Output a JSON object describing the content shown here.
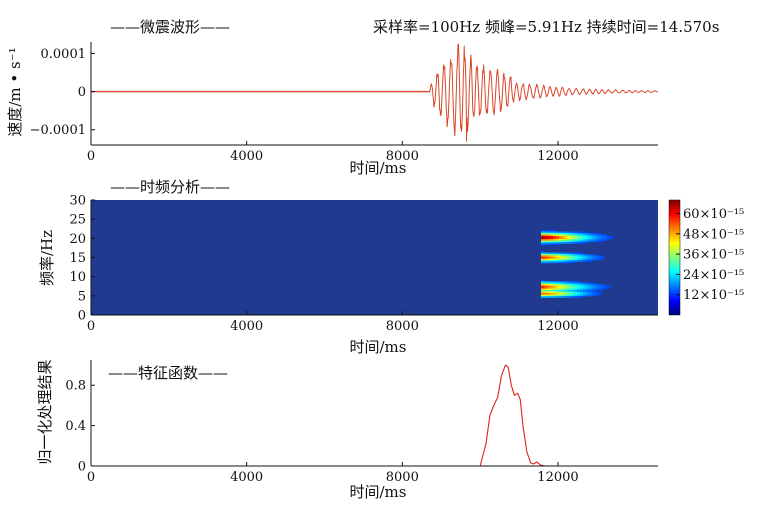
{
  "chart_data": [
    {
      "type": "line",
      "legend": "——微震波形——",
      "info": "采样率=100Hz 频峰=5.91Hz 持续时间=14.570s",
      "xlabel": "时间/ms",
      "ylabel": "速度/m • s⁻¹",
      "xlim": [
        0,
        14570
      ],
      "ylim": [
        -0.00014,
        0.00013
      ],
      "xticks": [
        0,
        4000,
        8000,
        12000
      ],
      "xtick_labels": [
        "0",
        "4000",
        "8000",
        "12000"
      ],
      "yticks": [
        0.0001,
        0,
        -0.0001
      ],
      "ytick_labels": [
        "0.0001",
        "0",
        "−0.0001"
      ],
      "line_color": "#d9472b",
      "waveform_envelope": {
        "quiet_until": 8700,
        "peak_time": 9500,
        "peak_amplitude": 0.00012,
        "min_amplitude": -0.00013,
        "coda_until": 14570,
        "dominant_frequency_hz": 5.91
      }
    },
    {
      "type": "heatmap",
      "legend": "——时频分析——",
      "xlabel": "时间/ms",
      "ylabel": "频率/Hz",
      "xlim": [
        0,
        14570
      ],
      "ylim": [
        0,
        30
      ],
      "xticks": [
        0,
        4000,
        8000,
        12000
      ],
      "xtick_labels": [
        "0",
        "4000",
        "8000",
        "12000"
      ],
      "yticks": [
        0,
        5,
        10,
        15,
        20,
        25,
        30
      ],
      "ytick_labels": [
        "0",
        "5",
        "10",
        "15",
        "20",
        "25",
        "30"
      ],
      "colormap": "jet",
      "background_color": "#1f3a8f",
      "colorbar_ticks": [
        "60×10⁻¹⁵",
        "48×10⁻¹⁵",
        "36×10⁻¹⁵",
        "24×10⁻¹⁵",
        "12×10⁻¹⁵"
      ],
      "colorbar_values": [
        60,
        48,
        36,
        24,
        12
      ],
      "colorbar_range": [
        0,
        68
      ],
      "energy_bands": [
        {
          "center_time": 11400,
          "time_halfwidth": 1500,
          "freq": 20.2,
          "freq_halfwidth": 1.3,
          "intensity": 1.0
        },
        {
          "center_time": 11400,
          "time_halfwidth": 1400,
          "freq": 15.0,
          "freq_halfwidth": 1.1,
          "intensity": 0.85
        },
        {
          "center_time": 11100,
          "time_halfwidth": 1700,
          "freq": 7.3,
          "freq_halfwidth": 1.3,
          "intensity": 0.95
        },
        {
          "center_time": 11500,
          "time_halfwidth": 1300,
          "freq": 5.6,
          "freq_halfwidth": 0.9,
          "intensity": 0.75
        }
      ]
    },
    {
      "type": "line",
      "legend": "——特征函数——",
      "xlabel": "时间/ms",
      "ylabel": "归一化处理结果",
      "xlim": [
        0,
        14570
      ],
      "ylim": [
        0,
        1.05
      ],
      "xticks": [
        0,
        4000,
        8000,
        12000
      ],
      "xtick_labels": [
        "0",
        "4000",
        "8000",
        "12000"
      ],
      "yticks": [
        0,
        0.4,
        0.8
      ],
      "ytick_labels": [
        "0",
        "0.4",
        "0.8"
      ],
      "line_color": "#e0201b",
      "x": [
        0,
        10000,
        10150,
        10250,
        10350,
        10450,
        10550,
        10650,
        10720,
        10800,
        10880,
        10960,
        11030,
        11100,
        11200,
        11300,
        11380,
        11450,
        11550,
        11650,
        14570
      ],
      "y": [
        0,
        0,
        0.22,
        0.5,
        0.6,
        0.68,
        0.9,
        1.0,
        0.98,
        0.8,
        0.7,
        0.72,
        0.66,
        0.4,
        0.14,
        0.03,
        0.02,
        0.04,
        0.01,
        0,
        0
      ]
    }
  ]
}
